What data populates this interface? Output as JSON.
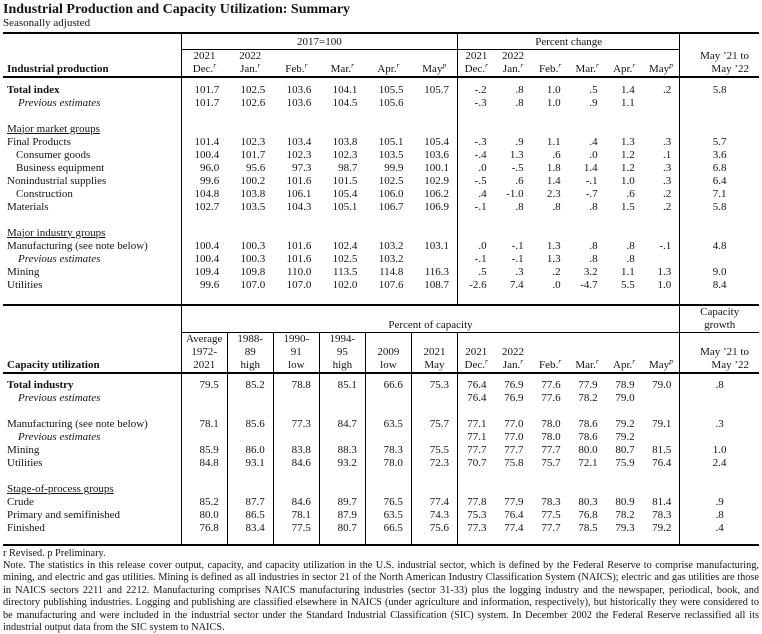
{
  "doc": {
    "title": "Industrial Production and Capacity Utilization: Summary",
    "subtitle": "Seasonally adjusted"
  },
  "months": {
    "cols": [
      {
        "year": "2021",
        "label": "Dec.",
        "sup": "r"
      },
      {
        "year": "2022",
        "label": "Jan.",
        "sup": "r"
      },
      {
        "year": "",
        "label": "Feb.",
        "sup": "r"
      },
      {
        "year": "",
        "label": "Mar.",
        "sup": "r"
      },
      {
        "year": "",
        "label": "Apr.",
        "sup": "r"
      },
      {
        "year": "",
        "label": "May",
        "sup": "p"
      }
    ]
  },
  "table1": {
    "row_header": "Industrial production",
    "group1": "2017=100",
    "group2": "Percent change",
    "yoy_header": [
      "May ’21 to",
      "May ’22"
    ],
    "rows": [
      {
        "l": "Total index",
        "b": 1,
        "v1": [
          "101.7",
          "102.5",
          "103.6",
          "104.1",
          "105.5",
          "105.7"
        ],
        "v2": [
          "-.2",
          ".8",
          "1.0",
          ".5",
          "1.4",
          ".2"
        ],
        "y": "5.8"
      },
      {
        "l": "Previous estimates",
        "i": 1,
        "v1": [
          "101.7",
          "102.6",
          "103.6",
          "104.5",
          "105.6",
          ""
        ],
        "v2": [
          "-.3",
          ".8",
          "1.0",
          ".9",
          "1.1",
          ""
        ],
        "y": ""
      },
      {
        "t": "sp"
      },
      {
        "l": "Major market groups",
        "sec": 1
      },
      {
        "l": "Final Products",
        "v1": [
          "101.4",
          "102.3",
          "103.4",
          "103.8",
          "105.1",
          "105.4"
        ],
        "v2": [
          "-.3",
          ".9",
          "1.1",
          ".4",
          "1.3",
          ".3"
        ],
        "y": "5.7"
      },
      {
        "l": "Consumer goods",
        "ind": 1,
        "v1": [
          "100.4",
          "101.7",
          "102.3",
          "102.3",
          "103.5",
          "103.6"
        ],
        "v2": [
          "-.4",
          "1.3",
          ".6",
          ".0",
          "1.2",
          ".1"
        ],
        "y": "3.6"
      },
      {
        "l": "Business equipment",
        "ind": 1,
        "v1": [
          "96.0",
          "95.6",
          "97.3",
          "98.7",
          "99.9",
          "100.1"
        ],
        "v2": [
          ".0",
          "-.5",
          "1.8",
          "1.4",
          "1.2",
          ".3"
        ],
        "y": "6.8"
      },
      {
        "l": "Nonindustrial supplies",
        "v1": [
          "99.6",
          "100.2",
          "101.6",
          "101.5",
          "102.5",
          "102.9"
        ],
        "v2": [
          "-.5",
          ".6",
          "1.4",
          "-.1",
          "1.0",
          ".3"
        ],
        "y": "6.4"
      },
      {
        "l": "Construction",
        "ind": 1,
        "v1": [
          "104.8",
          "103.8",
          "106.1",
          "105.4",
          "106.0",
          "106.2"
        ],
        "v2": [
          ".4",
          "-1.0",
          "2.3",
          "-.7",
          ".6",
          ".2"
        ],
        "y": "7.1"
      },
      {
        "l": "Materials",
        "v1": [
          "102.7",
          "103.5",
          "104.3",
          "105.1",
          "106.7",
          "106.9"
        ],
        "v2": [
          "-.1",
          ".8",
          ".8",
          ".8",
          "1.5",
          ".2"
        ],
        "y": "5.8"
      },
      {
        "t": "sp"
      },
      {
        "l": "Major industry groups",
        "sec": 1
      },
      {
        "l": "Manufacturing (see note below)",
        "v1": [
          "100.4",
          "100.3",
          "101.6",
          "102.4",
          "103.2",
          "103.1"
        ],
        "v2": [
          ".0",
          "-.1",
          "1.3",
          ".8",
          ".8",
          "-.1"
        ],
        "y": "4.8"
      },
      {
        "l": "Previous estimates",
        "i": 1,
        "v1": [
          "100.4",
          "100.3",
          "101.6",
          "102.5",
          "103.2",
          ""
        ],
        "v2": [
          "-.1",
          "-.1",
          "1.3",
          ".8",
          ".8",
          ""
        ],
        "y": ""
      },
      {
        "l": "Mining",
        "v1": [
          "109.4",
          "109.8",
          "110.0",
          "113.5",
          "114.8",
          "116.3"
        ],
        "v2": [
          ".5",
          ".3",
          ".2",
          "3.2",
          "1.1",
          "1.3"
        ],
        "y": "9.0"
      },
      {
        "l": "Utilities",
        "v1": [
          "99.6",
          "107.0",
          "107.0",
          "102.0",
          "107.6",
          "108.7"
        ],
        "v2": [
          "-2.6",
          "7.4",
          ".0",
          "-4.7",
          "5.5",
          "1.0"
        ],
        "y": "8.4"
      }
    ]
  },
  "table2": {
    "row_header": "Capacity utilization",
    "group1": "Percent of capacity",
    "group2": [
      "Capacity",
      "growth"
    ],
    "yoy_header": [
      "May ’21 to",
      "May ’22"
    ],
    "hist_cols": [
      [
        "Average",
        "1972-",
        "2021"
      ],
      [
        "1988-",
        "89",
        "high"
      ],
      [
        "1990-",
        "91",
        "low"
      ],
      [
        "1994-",
        "95",
        "high"
      ],
      [
        "",
        "2009",
        "low"
      ],
      [
        "",
        "2021",
        "May"
      ]
    ],
    "rows": [
      {
        "l": "Total industry",
        "b": 1,
        "v1": [
          "79.5",
          "85.2",
          "78.8",
          "85.1",
          "66.6",
          "75.3"
        ],
        "v2": [
          "76.4",
          "76.9",
          "77.6",
          "77.9",
          "78.9",
          "79.0"
        ],
        "y": ".8"
      },
      {
        "l": "Previous estimates",
        "i": 1,
        "v1": [
          "",
          "",
          "",
          "",
          "",
          ""
        ],
        "v2": [
          "76.4",
          "76.9",
          "77.6",
          "78.2",
          "79.0",
          ""
        ],
        "y": ""
      },
      {
        "t": "sp"
      },
      {
        "l": "Manufacturing (see note below)",
        "v1": [
          "78.1",
          "85.6",
          "77.3",
          "84.7",
          "63.5",
          "75.7"
        ],
        "v2": [
          "77.1",
          "77.0",
          "78.0",
          "78.6",
          "79.2",
          "79.1"
        ],
        "y": ".3"
      },
      {
        "l": "Previous estimates",
        "i": 1,
        "v1": [
          "",
          "",
          "",
          "",
          "",
          ""
        ],
        "v2": [
          "77.1",
          "77.0",
          "78.0",
          "78.6",
          "79.2",
          ""
        ],
        "y": ""
      },
      {
        "l": "Mining",
        "v1": [
          "85.9",
          "86.0",
          "83.8",
          "88.3",
          "78.3",
          "75.5"
        ],
        "v2": [
          "77.7",
          "77.7",
          "77.7",
          "80.0",
          "80.7",
          "81.5"
        ],
        "y": "1.0"
      },
      {
        "l": "Utilities",
        "v1": [
          "84.8",
          "93.1",
          "84.6",
          "93.2",
          "78.0",
          "72.3"
        ],
        "v2": [
          "70.7",
          "75.8",
          "75.7",
          "72.1",
          "75.9",
          "76.4"
        ],
        "y": "2.4"
      },
      {
        "t": "sp"
      },
      {
        "l": "Stage-of-process groups",
        "sec": 1
      },
      {
        "l": "Crude",
        "v1": [
          "85.2",
          "87.7",
          "84.6",
          "89.7",
          "76.5",
          "77.4"
        ],
        "v2": [
          "77.8",
          "77.9",
          "78.3",
          "80.3",
          "80.9",
          "81.4"
        ],
        "y": ".9"
      },
      {
        "l": "Primary and semifinished",
        "v1": [
          "80.0",
          "86.5",
          "78.1",
          "87.9",
          "63.5",
          "74.3"
        ],
        "v2": [
          "75.3",
          "76.4",
          "77.5",
          "76.8",
          "78.2",
          "78.3"
        ],
        "y": ".8"
      },
      {
        "l": "Finished",
        "v1": [
          "76.8",
          "83.4",
          "77.5",
          "80.7",
          "66.5",
          "75.6"
        ],
        "v2": [
          "77.3",
          "77.4",
          "77.7",
          "78.5",
          "79.3",
          "79.2"
        ],
        "y": ".4"
      }
    ]
  },
  "footer": {
    "revisions": "r Revised.  p Preliminary.",
    "note": "Note.  The statistics in this release cover output, capacity, and capacity utilization in the U.S. industrial sector, which is defined by the Federal Reserve to comprise manufacturing, mining, and electric and gas utilities. Mining is defined as all industries in sector 21 of the North American Industry Classification System (NAICS); electric and gas utilities are those in NAICS sectors 2211 and 2212. Manufacturing comprises NAICS manufacturing industries (sector 31-33) plus the logging industry and the newspaper, periodical, book, and directory publishing industries. Logging and publishing are classified elsewhere in NAICS (under agriculture and information, respectively), but historically they were considered to be manufacturing and were included in the industrial sector under the Standard Industrial Classification (SIC) system. In December 2002 the Federal Reserve reclassified all its industrial output data from the SIC system to NAICS."
  }
}
